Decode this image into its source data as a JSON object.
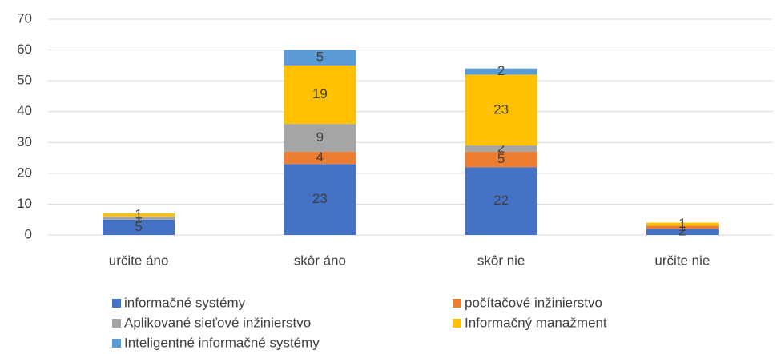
{
  "chart_data": {
    "type": "stacked_bar",
    "categories": [
      "určite áno",
      "skôr áno",
      "skôr nie",
      "určite nie"
    ],
    "series": [
      {
        "name": "informačné systémy",
        "color": "#4472c4",
        "values": [
          5,
          23,
          22,
          2
        ]
      },
      {
        "name": "počítačové inžinierstvo",
        "color": "#ed7d31",
        "values": [
          0,
          4,
          5,
          1
        ]
      },
      {
        "name": "Aplikované sieťové inžinierstvo",
        "color": "#a5a5a5",
        "values": [
          1,
          9,
          2,
          0
        ]
      },
      {
        "name": "Informačný manažment",
        "color": "#ffc000",
        "values": [
          1,
          19,
          23,
          1
        ]
      },
      {
        "name": "Inteligentné informačné systémy",
        "color": "#5b9bd5",
        "values": [
          0,
          5,
          2,
          0
        ]
      }
    ],
    "ylim": [
      0,
      70
    ],
    "yticks": [
      0,
      10,
      20,
      30,
      40,
      50,
      60,
      70
    ],
    "grid": true,
    "legend": "bottom"
  }
}
